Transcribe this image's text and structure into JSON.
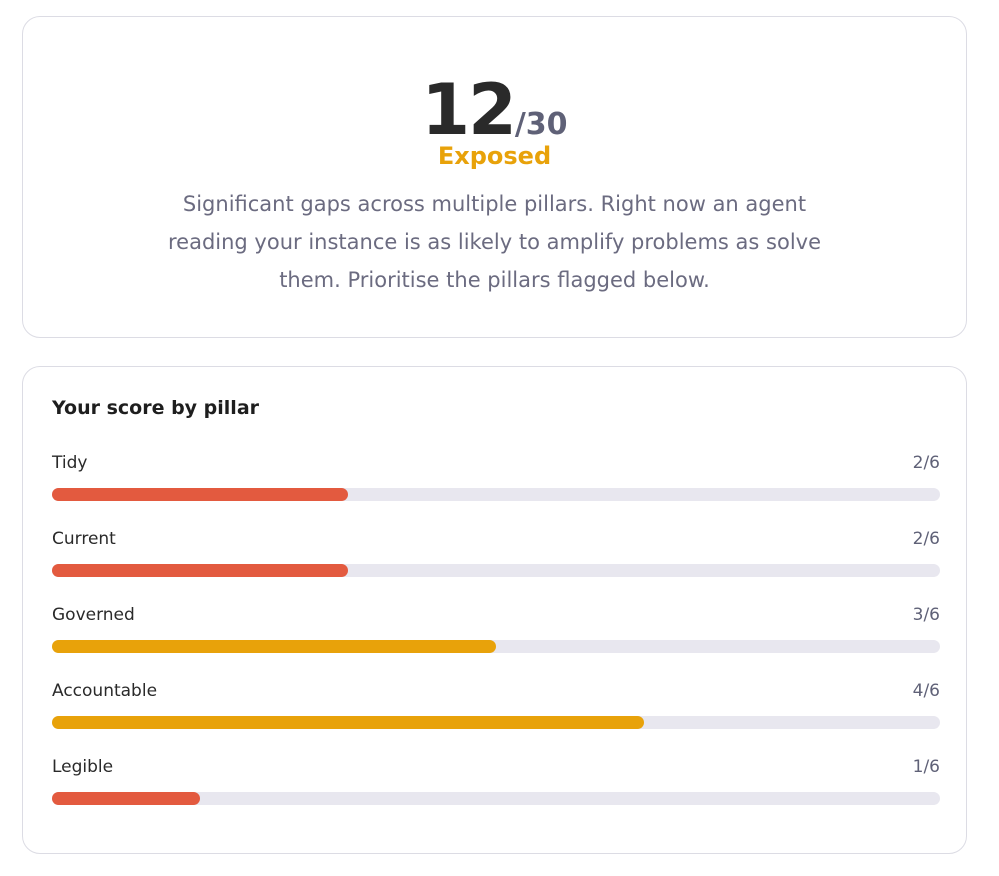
{
  "score": {
    "value": "12",
    "total": "/30",
    "rating": "Exposed",
    "rating_color": "#e8a20a",
    "description": "Significant gaps across multiple pillars. Right now an agent reading your instance is as likely to amplify problems as solve them. Prioritise the pillars flagged below."
  },
  "breakdown": {
    "title": "Your score by pillar",
    "track_color": "#e8e7ef",
    "pillars": [
      {
        "name": "Tidy",
        "value": 2,
        "max": 6,
        "label": "2/6",
        "color": "#e35a3f"
      },
      {
        "name": "Current",
        "value": 2,
        "max": 6,
        "label": "2/6",
        "color": "#e35a3f"
      },
      {
        "name": "Governed",
        "value": 3,
        "max": 6,
        "label": "3/6",
        "color": "#e8a20a"
      },
      {
        "name": "Accountable",
        "value": 4,
        "max": 6,
        "label": "4/6",
        "color": "#e8a20a"
      },
      {
        "name": "Legible",
        "value": 1,
        "max": 6,
        "label": "1/6",
        "color": "#e35a3f"
      }
    ]
  }
}
